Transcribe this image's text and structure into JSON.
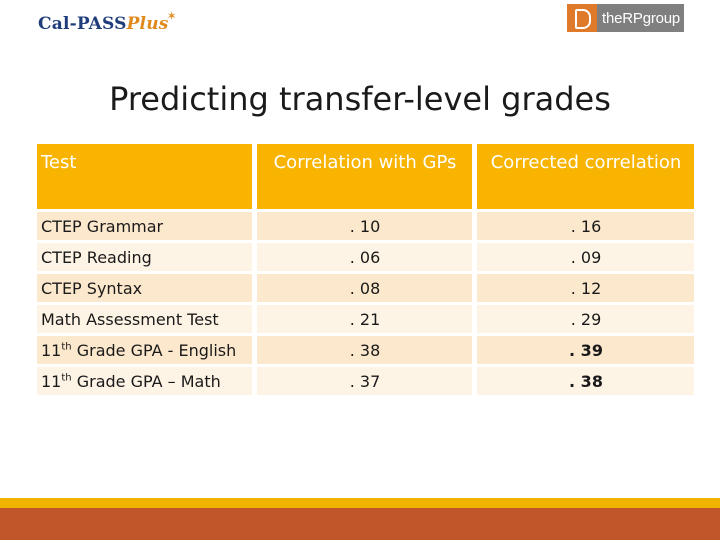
{
  "logos": {
    "left": {
      "main": "Cal-PASS",
      "accent": "Plus"
    },
    "right": {
      "text": "theRPgroup"
    }
  },
  "slide": {
    "title": "Predicting transfer-level grades"
  },
  "table": {
    "headers": [
      "Test",
      "Correlation with GPs",
      "Corrected correlation"
    ],
    "rows": [
      {
        "test": "CTEP Grammar",
        "correlation": ". 10",
        "corrected": ". 16",
        "bold": false
      },
      {
        "test": "CTEP Reading",
        "correlation": ". 06",
        "corrected": ". 09",
        "bold": false
      },
      {
        "test": "CTEP Syntax",
        "correlation": ". 08",
        "corrected": ". 12",
        "bold": false
      },
      {
        "test": "Math Assessment Test",
        "correlation": ". 21",
        "corrected": ". 29",
        "bold": false
      },
      {
        "test_prefix": "11",
        "test_sup": "th",
        "test_rest": " Grade GPA - English",
        "correlation": ". 38",
        "corrected": ". 39",
        "bold": true
      },
      {
        "test_prefix": "11",
        "test_sup": "th",
        "test_rest": " Grade GPA – Math",
        "correlation": ". 37",
        "corrected": ". 38",
        "bold": true
      }
    ]
  },
  "colors": {
    "header": "#f8b400",
    "row_shade": "#fce8cd",
    "row_plain": "#fef4e6",
    "footer_top": "#f0b400",
    "footer_bottom": "#c0562a"
  }
}
